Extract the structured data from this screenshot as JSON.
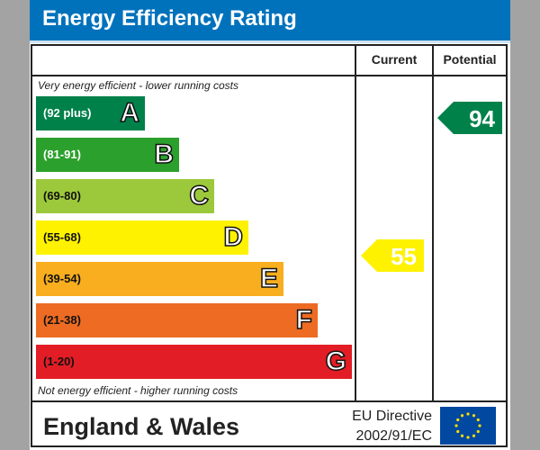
{
  "title": "Energy Efficiency Rating",
  "columns": {
    "current": "Current",
    "potential": "Potential"
  },
  "top_note": "Very energy efficient - lower running costs",
  "bottom_note": "Not energy efficient - higher running costs",
  "chart_data": {
    "type": "bar",
    "bands": [
      {
        "letter": "A",
        "range": "(92 plus)",
        "color": "#00814a"
      },
      {
        "letter": "B",
        "range": "(81-91)",
        "color": "#2ca02c"
      },
      {
        "letter": "C",
        "range": "(69-80)",
        "color": "#9cc93b"
      },
      {
        "letter": "D",
        "range": "(55-68)",
        "color": "#fef200"
      },
      {
        "letter": "E",
        "range": "(39-54)",
        "color": "#f8ae1e"
      },
      {
        "letter": "F",
        "range": "(21-38)",
        "color": "#ed6b23"
      },
      {
        "letter": "G",
        "range": "(1-20)",
        "color": "#e31d25"
      }
    ],
    "current": {
      "value": "55",
      "band": "D",
      "color": "#fef200"
    },
    "potential": {
      "value": "94",
      "band": "A",
      "color": "#00814a"
    }
  },
  "footer": {
    "region": "England & Wales",
    "directive_line1": "EU Directive",
    "directive_line2": "2002/91/EC",
    "flag": "eu-flag-icon"
  }
}
